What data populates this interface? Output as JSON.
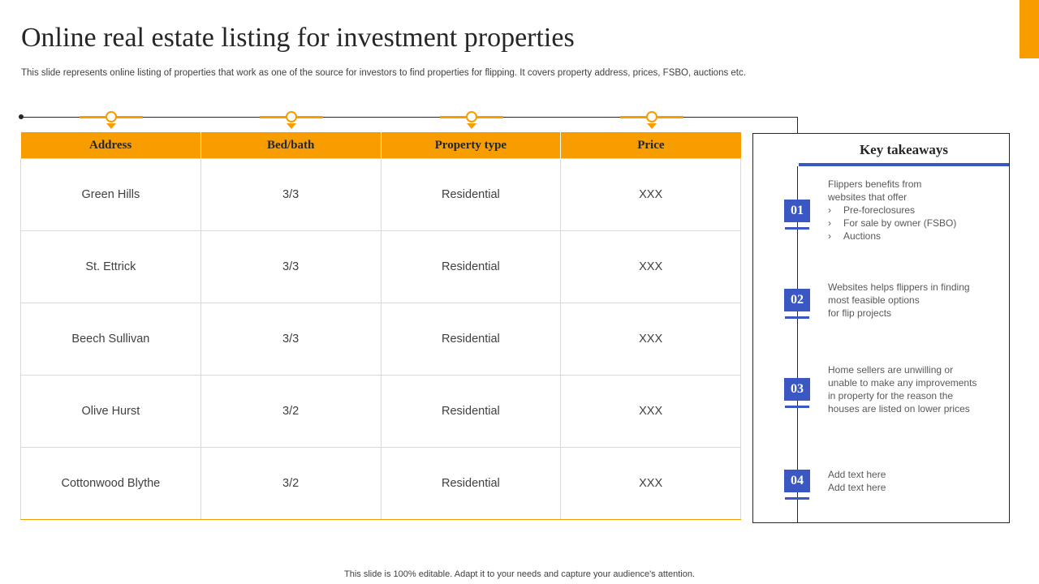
{
  "title": "Online real estate listing for investment properties",
  "subtitle": "This slide represents online listing of properties that work as one of the source for investors to find properties for flipping. It covers property address, prices, FSBO, auctions etc.",
  "colors": {
    "accent": "#f79d00",
    "badge": "#3a57c4"
  },
  "table": {
    "headers": [
      "Address",
      "Bed/bath",
      "Property  type",
      "Price"
    ],
    "rows": [
      [
        "Green Hills",
        "3/3",
        "Residential",
        "XXX"
      ],
      [
        "St. Ettrick",
        "3/3",
        "Residential",
        "XXX"
      ],
      [
        "Beech Sullivan",
        "3/3",
        "Residential",
        "XXX"
      ],
      [
        "Olive Hurst",
        "3/2",
        "Residential",
        "XXX"
      ],
      [
        "Cottonwood Blythe",
        "3/2",
        "Residential",
        "XXX"
      ]
    ]
  },
  "takeaways": {
    "title": "Key takeaways",
    "bullet_glyph": "›",
    "items": [
      {
        "number": "01",
        "lines": [
          "Flippers benefits from",
          "websites that offer"
        ],
        "bullets": [
          "Pre-foreclosures",
          "For sale by owner (FSBO)",
          "Auctions"
        ]
      },
      {
        "number": "02",
        "lines": [
          "Websites helps flippers in finding",
          "most feasible options",
          "for flip projects"
        ]
      },
      {
        "number": "03",
        "lines": [
          "Home sellers are unwilling or",
          "unable to make any improvements",
          "in property for the reason the",
          "houses are listed on lower prices"
        ]
      },
      {
        "number": "04",
        "lines": [
          "Add text here",
          "Add text here"
        ]
      }
    ]
  },
  "footer": "This slide is 100% editable. Adapt it to your needs and capture your audience's attention."
}
